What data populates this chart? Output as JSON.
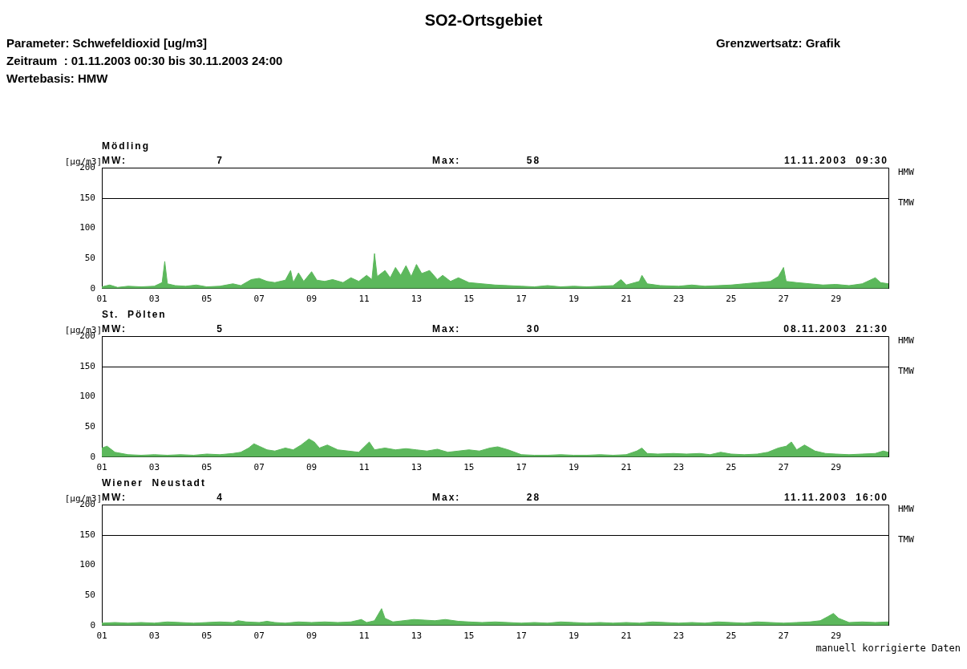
{
  "chart_data": [
    {
      "type": "other",
      "title": "SO2-Ortsgebiet",
      "annotations": [
        "Parameter: Schwefeldioxid [ug/m3]",
        "Grenzwertsatz: Grafik",
        "Zeitraum  : 01.11.2003 00:30 bis 30.11.2003 24:00",
        "Wertebasis: HMW"
      ]
    },
    {
      "type": "area",
      "title": "Mödling",
      "ylabel": "[µg/m3]",
      "color": "#5cb85c",
      "grid": false,
      "legend": false,
      "xlim": [
        1,
        31
      ],
      "ylim": [
        0,
        200
      ],
      "xticks": [
        {
          "value": 1,
          "label": "01"
        },
        {
          "value": 3,
          "label": "03"
        },
        {
          "value": 5,
          "label": "05"
        },
        {
          "value": 7,
          "label": "07"
        },
        {
          "value": 9,
          "label": "09"
        },
        {
          "value": 11,
          "label": "11"
        },
        {
          "value": 13,
          "label": "13"
        },
        {
          "value": 15,
          "label": "15"
        },
        {
          "value": 17,
          "label": "17"
        },
        {
          "value": 19,
          "label": "19"
        },
        {
          "value": 21,
          "label": "21"
        },
        {
          "value": 23,
          "label": "23"
        },
        {
          "value": 25,
          "label": "25"
        },
        {
          "value": 27,
          "label": "27"
        },
        {
          "value": 29,
          "label": "29"
        }
      ],
      "yticks": [
        0,
        50,
        100,
        150,
        200
      ],
      "ref_lines": [
        {
          "axis": "y",
          "value": 150,
          "label": "TMW"
        }
      ],
      "annotations": [
        "MW:",
        "7",
        "Max:",
        "58",
        "11.11.2003  09:30",
        "HMW"
      ],
      "x": [
        1,
        1.3,
        1.6,
        2,
        2.5,
        3,
        3.3,
        3.4,
        3.5,
        3.8,
        4.2,
        4.6,
        5,
        5.5,
        6,
        6.3,
        6.7,
        7,
        7.3,
        7.6,
        8,
        8.2,
        8.3,
        8.5,
        8.7,
        9,
        9.2,
        9.5,
        9.8,
        10.2,
        10.5,
        10.8,
        11.1,
        11.3,
        11.4,
        11.5,
        11.8,
        12,
        12.2,
        12.4,
        12.6,
        12.8,
        13,
        13.2,
        13.5,
        13.8,
        14,
        14.3,
        14.6,
        15,
        15.5,
        16,
        16.5,
        17,
        17.5,
        18,
        18.5,
        19,
        19.5,
        20,
        20.5,
        20.8,
        21,
        21.5,
        21.6,
        21.8,
        22.3,
        23,
        23.5,
        24,
        24.5,
        25,
        25.5,
        26,
        26.5,
        26.8,
        27,
        27.1,
        27.5,
        28,
        28.5,
        29,
        29.5,
        30,
        30.5,
        30.7,
        31
      ],
      "values": [
        3,
        6,
        2,
        4,
        3,
        4,
        10,
        45,
        8,
        5,
        4,
        6,
        3,
        4,
        8,
        5,
        15,
        17,
        12,
        10,
        14,
        30,
        10,
        26,
        12,
        28,
        14,
        12,
        15,
        10,
        18,
        12,
        22,
        15,
        58,
        20,
        30,
        18,
        35,
        22,
        38,
        20,
        40,
        25,
        30,
        15,
        22,
        12,
        18,
        10,
        8,
        6,
        5,
        4,
        3,
        5,
        3,
        4,
        3,
        4,
        5,
        15,
        6,
        12,
        22,
        8,
        5,
        4,
        6,
        4,
        5,
        6,
        8,
        10,
        12,
        20,
        35,
        12,
        10,
        8,
        6,
        7,
        5,
        8,
        18,
        10,
        8
      ]
    },
    {
      "type": "area",
      "title": "St.  Pölten",
      "ylabel": "[µg/m3]",
      "color": "#5cb85c",
      "grid": false,
      "legend": false,
      "xlim": [
        1,
        31
      ],
      "ylim": [
        0,
        200
      ],
      "xticks": [
        {
          "value": 1,
          "label": "01"
        },
        {
          "value": 3,
          "label": "03"
        },
        {
          "value": 5,
          "label": "05"
        },
        {
          "value": 7,
          "label": "07"
        },
        {
          "value": 9,
          "label": "09"
        },
        {
          "value": 11,
          "label": "11"
        },
        {
          "value": 13,
          "label": "13"
        },
        {
          "value": 15,
          "label": "15"
        },
        {
          "value": 17,
          "label": "17"
        },
        {
          "value": 19,
          "label": "19"
        },
        {
          "value": 21,
          "label": "21"
        },
        {
          "value": 23,
          "label": "23"
        },
        {
          "value": 25,
          "label": "25"
        },
        {
          "value": 27,
          "label": "27"
        },
        {
          "value": 29,
          "label": "29"
        }
      ],
      "yticks": [
        0,
        50,
        100,
        150,
        200
      ],
      "ref_lines": [
        {
          "axis": "y",
          "value": 150,
          "label": "TMW"
        }
      ],
      "annotations": [
        "MW:",
        "5",
        "Max:",
        "30",
        "08.11.2003  21:30",
        "HMW"
      ],
      "x": [
        1,
        1.2,
        1.5,
        2,
        2.5,
        3,
        3.5,
        4,
        4.5,
        5,
        5.5,
        6,
        6.3,
        6.6,
        6.8,
        7,
        7.3,
        7.6,
        8,
        8.3,
        8.6,
        8.9,
        9.1,
        9.3,
        9.6,
        10,
        10.4,
        10.8,
        11.2,
        11.4,
        11.8,
        12.2,
        12.6,
        13,
        13.4,
        13.8,
        14.2,
        14.6,
        15,
        15.4,
        15.8,
        16.1,
        16.5,
        17,
        17.5,
        18,
        18.5,
        19,
        19.5,
        20,
        20.5,
        21,
        21.4,
        21.6,
        21.8,
        22.2,
        22.8,
        23.3,
        23.8,
        24.2,
        24.6,
        25,
        25.5,
        26,
        26.4,
        26.8,
        27.1,
        27.3,
        27.5,
        27.8,
        28.2,
        28.6,
        29,
        29.5,
        30,
        30.5,
        30.8,
        31
      ],
      "values": [
        15,
        18,
        8,
        4,
        3,
        4,
        3,
        4,
        3,
        5,
        4,
        6,
        8,
        15,
        22,
        18,
        12,
        10,
        15,
        12,
        20,
        30,
        25,
        15,
        20,
        12,
        10,
        8,
        25,
        12,
        15,
        12,
        14,
        12,
        10,
        13,
        8,
        10,
        12,
        10,
        15,
        17,
        12,
        4,
        3,
        3,
        4,
        3,
        3,
        4,
        3,
        4,
        10,
        15,
        6,
        5,
        6,
        5,
        6,
        4,
        8,
        5,
        4,
        5,
        8,
        15,
        18,
        25,
        12,
        20,
        10,
        6,
        5,
        4,
        5,
        6,
        10,
        8
      ]
    },
    {
      "type": "area",
      "title": "Wiener  Neustadt",
      "ylabel": "[µg/m3]",
      "color": "#5cb85c",
      "grid": false,
      "legend": false,
      "xlim": [
        1,
        31
      ],
      "ylim": [
        0,
        200
      ],
      "xticks": [
        {
          "value": 1,
          "label": "01"
        },
        {
          "value": 3,
          "label": "03"
        },
        {
          "value": 5,
          "label": "05"
        },
        {
          "value": 7,
          "label": "07"
        },
        {
          "value": 9,
          "label": "09"
        },
        {
          "value": 11,
          "label": "11"
        },
        {
          "value": 13,
          "label": "13"
        },
        {
          "value": 15,
          "label": "15"
        },
        {
          "value": 17,
          "label": "17"
        },
        {
          "value": 19,
          "label": "19"
        },
        {
          "value": 21,
          "label": "21"
        },
        {
          "value": 23,
          "label": "23"
        },
        {
          "value": 25,
          "label": "25"
        },
        {
          "value": 27,
          "label": "27"
        },
        {
          "value": 29,
          "label": "29"
        }
      ],
      "yticks": [
        0,
        50,
        100,
        150,
        200
      ],
      "ref_lines": [
        {
          "axis": "y",
          "value": 150,
          "label": "TMW"
        }
      ],
      "annotations": [
        "MW:",
        "4",
        "Max:",
        "28",
        "11.11.2003  16:00",
        "HMW",
        "manuell korrigierte Daten"
      ],
      "x": [
        1,
        1.5,
        2,
        2.5,
        3,
        3.5,
        4,
        4.5,
        5,
        5.5,
        6,
        6.2,
        6.5,
        7,
        7.3,
        7.6,
        8,
        8.5,
        9,
        9.5,
        10,
        10.5,
        10.9,
        11.1,
        11.4,
        11.67,
        11.8,
        12.1,
        12.5,
        12.9,
        13.3,
        13.7,
        14.1,
        14.6,
        15,
        15.5,
        16,
        16.5,
        17,
        17.5,
        18,
        18.5,
        19,
        19.5,
        20,
        20.5,
        21,
        21.5,
        22,
        22.5,
        23,
        23.5,
        24,
        24.5,
        25,
        25.5,
        26,
        26.5,
        27,
        27.5,
        28,
        28.4,
        28.7,
        28.9,
        29.1,
        29.5,
        30,
        30.5,
        31
      ],
      "values": [
        4,
        5,
        4,
        5,
        4,
        6,
        5,
        4,
        5,
        6,
        5,
        8,
        6,
        5,
        7,
        5,
        4,
        6,
        5,
        6,
        5,
        6,
        10,
        5,
        8,
        28,
        12,
        6,
        8,
        10,
        9,
        8,
        10,
        7,
        6,
        5,
        6,
        5,
        4,
        5,
        4,
        6,
        5,
        4,
        5,
        4,
        5,
        4,
        6,
        5,
        4,
        5,
        4,
        6,
        5,
        4,
        6,
        5,
        4,
        5,
        6,
        8,
        15,
        20,
        12,
        5,
        6,
        5,
        6
      ]
    }
  ]
}
